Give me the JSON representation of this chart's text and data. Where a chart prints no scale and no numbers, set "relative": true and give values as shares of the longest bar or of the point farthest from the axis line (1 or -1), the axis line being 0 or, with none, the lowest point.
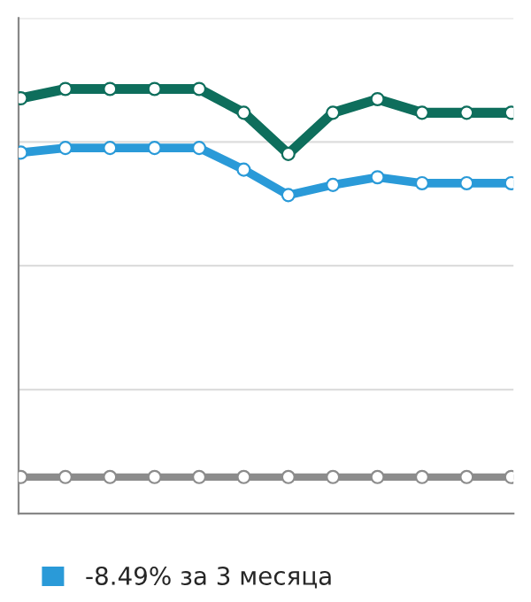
{
  "chart_data": {
    "type": "line",
    "relative": true,
    "categories": [
      null,
      null,
      null,
      null,
      null,
      null,
      null,
      null,
      null,
      null,
      null,
      null
    ],
    "series": [
      {
        "color": "#0e6e5c",
        "values": [
          0.978,
          1,
          1,
          1,
          1,
          0.944,
          0.847,
          0.944,
          0.976,
          0.944,
          0.944,
          0.944
        ]
      },
      {
        "name": "-8.49% за 3 месяца",
        "color": "#2a9ad8",
        "values": [
          0.85,
          0.861,
          0.861,
          0.861,
          0.861,
          0.81,
          0.75,
          0.774,
          0.792,
          0.778,
          0.778,
          0.778
        ]
      },
      {
        "color": "#8c8c8c",
        "values": [
          0.086,
          0.086,
          0.086,
          0.086,
          0.086,
          0.086,
          0.086,
          0.086,
          0.086,
          0.086,
          0.086,
          0.086
        ]
      }
    ],
    "marker": "circle",
    "line_style": "solid",
    "grid": "y",
    "legend": "bottom left"
  }
}
